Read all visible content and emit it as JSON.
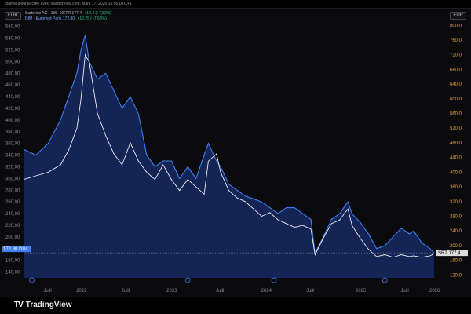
{
  "header": {
    "attribution": "mathieubourse créé avec TradingView.com, Mars 17, 2026 15:56 UTC+1"
  },
  "currency_left": "EUR",
  "currency_right": "EUR",
  "legend": {
    "series1": {
      "name": "Sartorius AG · 1W · XETR",
      "value": "177,4",
      "change": "+12,4 (+7,52%)"
    },
    "series2": {
      "name": "DIM · Euronext Paris",
      "value": "172,80",
      "change": "+12,25 (+7,63%)"
    }
  },
  "brand": {
    "name": "TradingView",
    "logo": "TV"
  },
  "footer_icons": {
    "left": "Z",
    "right": "gear-icon"
  },
  "colors": {
    "series1": "#f0f0f0",
    "series2": "#3f7df2",
    "area": "#1c3a8f",
    "left_axis": "#8c8c8c",
    "right_axis": "#e0a23c",
    "background": "#0b0b0e"
  },
  "chart_data": {
    "type": "line",
    "x_labels": [
      "Juill",
      "2022",
      "Juill",
      "2023",
      "Juill",
      "2024",
      "Juill",
      "2025",
      "Juill",
      "2026"
    ],
    "y_left_ticks": [
      "140,00",
      "160,00",
      "180,00",
      "200,00",
      "220,00",
      "240,00",
      "260,00",
      "280,00",
      "300,00",
      "320,00",
      "340,00",
      "360,00",
      "380,00",
      "400,00",
      "420,00",
      "440,00",
      "460,00",
      "480,00",
      "500,00",
      "520,00",
      "540,00",
      "560,00"
    ],
    "y_right_ticks": [
      "120,0",
      "160,0",
      "200,0",
      "240,0",
      "280,0",
      "320,0",
      "360,0",
      "400,0",
      "440,0",
      "480,0",
      "520,0",
      "560,0",
      "600,0",
      "640,0",
      "680,0",
      "720,0",
      "760,0",
      "800,0"
    ],
    "left_range": [
      130,
      565
    ],
    "right_range": [
      112,
      805
    ],
    "series": [
      {
        "name": "Sartorius AG",
        "axis": "right",
        "last_label": "SRT",
        "last_value": "177,4",
        "points": [
          [
            0,
            380
          ],
          [
            3,
            390
          ],
          [
            6,
            400
          ],
          [
            9,
            420
          ],
          [
            11,
            460
          ],
          [
            13,
            520
          ],
          [
            14,
            600
          ],
          [
            15,
            720
          ],
          [
            16,
            700
          ],
          [
            18,
            560
          ],
          [
            20,
            500
          ],
          [
            22,
            450
          ],
          [
            24,
            420
          ],
          [
            26,
            480
          ],
          [
            28,
            430
          ],
          [
            30,
            400
          ],
          [
            32,
            380
          ],
          [
            34,
            420
          ],
          [
            36,
            380
          ],
          [
            38,
            350
          ],
          [
            40,
            380
          ],
          [
            42,
            360
          ],
          [
            44,
            340
          ],
          [
            45,
            430
          ],
          [
            47,
            450
          ],
          [
            48,
            400
          ],
          [
            50,
            350
          ],
          [
            52,
            330
          ],
          [
            54,
            320
          ],
          [
            56,
            300
          ],
          [
            58,
            280
          ],
          [
            60,
            290
          ],
          [
            62,
            270
          ],
          [
            64,
            260
          ],
          [
            66,
            250
          ],
          [
            68,
            255
          ],
          [
            70,
            245
          ],
          [
            71,
            175
          ],
          [
            73,
            220
          ],
          [
            75,
            260
          ],
          [
            77,
            270
          ],
          [
            79,
            300
          ],
          [
            80,
            255
          ],
          [
            82,
            220
          ],
          [
            84,
            190
          ],
          [
            86,
            170
          ],
          [
            88,
            175
          ],
          [
            90,
            168
          ],
          [
            92,
            175
          ],
          [
            94,
            170
          ],
          [
            95,
            172
          ],
          [
            97,
            168
          ],
          [
            99,
            172
          ],
          [
            100,
            177.4
          ]
        ]
      },
      {
        "name": "DIM",
        "axis": "left",
        "last_label": "DIM",
        "last_value": "172,80",
        "points": [
          [
            0,
            350
          ],
          [
            3,
            340
          ],
          [
            6,
            360
          ],
          [
            9,
            400
          ],
          [
            11,
            440
          ],
          [
            13,
            480
          ],
          [
            14,
            520
          ],
          [
            15,
            545
          ],
          [
            16,
            500
          ],
          [
            18,
            470
          ],
          [
            20,
            480
          ],
          [
            22,
            450
          ],
          [
            24,
            420
          ],
          [
            26,
            440
          ],
          [
            28,
            410
          ],
          [
            30,
            340
          ],
          [
            32,
            320
          ],
          [
            34,
            330
          ],
          [
            36,
            330
          ],
          [
            38,
            300
          ],
          [
            40,
            320
          ],
          [
            42,
            300
          ],
          [
            44,
            340
          ],
          [
            45,
            360
          ],
          [
            47,
            330
          ],
          [
            48,
            320
          ],
          [
            50,
            290
          ],
          [
            52,
            280
          ],
          [
            54,
            270
          ],
          [
            56,
            265
          ],
          [
            58,
            260
          ],
          [
            60,
            250
          ],
          [
            62,
            240
          ],
          [
            64,
            250
          ],
          [
            66,
            250
          ],
          [
            68,
            240
          ],
          [
            70,
            230
          ],
          [
            71,
            172
          ],
          [
            73,
            200
          ],
          [
            75,
            230
          ],
          [
            77,
            240
          ],
          [
            79,
            260
          ],
          [
            80,
            240
          ],
          [
            82,
            225
          ],
          [
            84,
            205
          ],
          [
            86,
            180
          ],
          [
            88,
            185
          ],
          [
            90,
            200
          ],
          [
            92,
            215
          ],
          [
            94,
            205
          ],
          [
            95,
            210
          ],
          [
            97,
            190
          ],
          [
            99,
            180
          ],
          [
            100,
            172.8
          ]
        ]
      }
    ],
    "grid": false,
    "legend_position": "top-left"
  }
}
